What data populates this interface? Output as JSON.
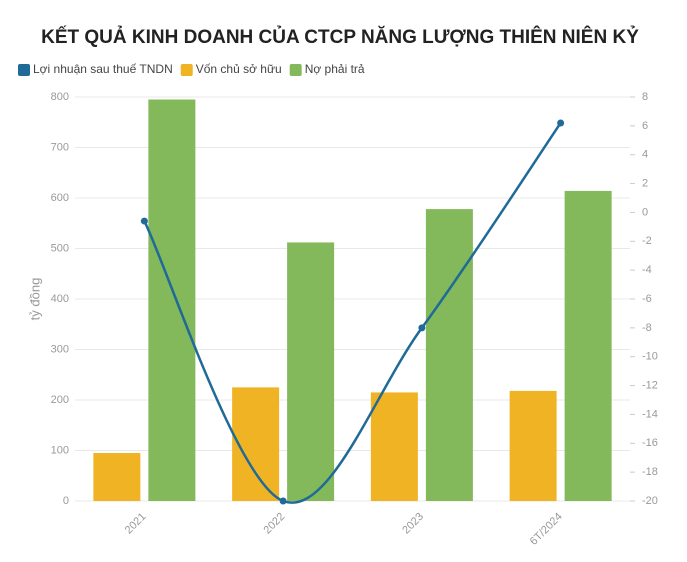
{
  "chart_data": {
    "type": "bar",
    "title": "KẾT QUẢ KINH DOANH CỦA CTCP NĂNG LƯỢNG THIÊN NIÊN KỶ",
    "y_label": "tỷ đồng",
    "categories": [
      "2021",
      "2022",
      "2023",
      "6T/2024"
    ],
    "series": [
      {
        "name": "Lợi nhuận sau thuế TNDN",
        "color": "#1f6a96",
        "type": "line",
        "axis": "y2",
        "values": [
          -0.6,
          -20,
          -8,
          6.2
        ]
      },
      {
        "name": "Vốn chủ sở hữu",
        "color": "#f0b323",
        "values": [
          95,
          225,
          215,
          218
        ]
      },
      {
        "name": "Nợ phải trả",
        "color": "#83b85b",
        "values": [
          795,
          512,
          578,
          614
        ]
      }
    ],
    "ylim": [
      0,
      800
    ],
    "yticks": [
      0,
      100,
      200,
      300,
      400,
      500,
      600,
      700,
      800
    ],
    "y2lim": [
      -20,
      8
    ],
    "y2ticks": [
      -20,
      -18,
      -16,
      -14,
      -12,
      -10,
      -8,
      -6,
      -4,
      -2,
      0,
      2,
      4,
      6,
      8
    ],
    "grid": true,
    "legend": "top-left"
  }
}
